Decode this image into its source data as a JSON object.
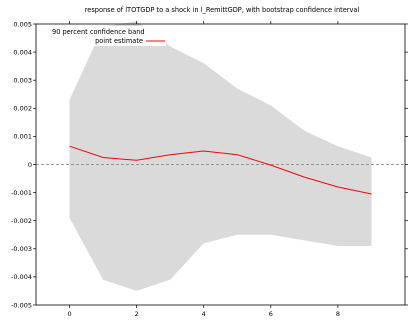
{
  "chart_data": {
    "type": "line",
    "title": "response of lTOTGDP to a shock in l_RemittGDP, with bootstrap confidence interval",
    "xlabel": "",
    "ylabel": "",
    "xlim": [
      -1,
      10
    ],
    "ylim": [
      -0.005,
      0.005
    ],
    "x_ticks": [
      0,
      2,
      4,
      6,
      8
    ],
    "y_ticks": [
      -0.005,
      -0.004,
      -0.003,
      -0.002,
      -0.001,
      0,
      0.001,
      0.002,
      0.003,
      0.004,
      0.005
    ],
    "y_tick_labels": [
      "-0.005",
      "-0.004",
      "-0.003",
      "-0.002",
      "-0.001",
      "0",
      "0.001",
      "0.002",
      "0.003",
      "0.004",
      "0.005"
    ],
    "grid": false,
    "legend_position": "top-left",
    "zero_line": true,
    "colors": {
      "point_estimate": "#ff0000",
      "band": "#dadada",
      "zero_line": "#808080"
    },
    "x": [
      0,
      1,
      2,
      3,
      4,
      5,
      6,
      7,
      8,
      9
    ],
    "series": [
      {
        "name": "point estimate",
        "values": [
          0.00065,
          0.00025,
          0.00015,
          0.00035,
          0.00048,
          0.00035,
          -2e-05,
          -0.00045,
          -0.0008,
          -0.00105
        ]
      }
    ],
    "band": {
      "name": "90 percent confidence band",
      "upper": [
        0.0023,
        0.0049,
        0.0051,
        0.0042,
        0.0036,
        0.0027,
        0.0021,
        0.0012,
        0.00065,
        0.00025
      ],
      "lower": [
        -0.0019,
        -0.0041,
        -0.0045,
        -0.0041,
        -0.0028,
        -0.0025,
        -0.0025,
        -0.0027,
        -0.0029,
        -0.0029
      ]
    }
  }
}
